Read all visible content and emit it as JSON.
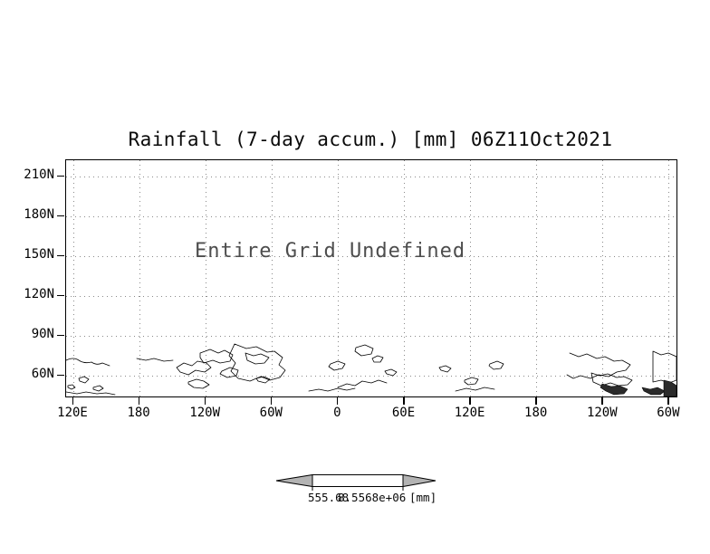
{
  "chart": {
    "title": "Rainfall (7-day accum.) [mm] 06Z11Oct2021",
    "annotation": "Entire Grid Undefined",
    "y_axis": {
      "labels": [
        "210N",
        "180N",
        "150N",
        "120N",
        "90N",
        "60N"
      ]
    },
    "x_axis": {
      "labels": [
        "120E",
        "180",
        "120W",
        "60W",
        "0",
        "60E",
        "120E",
        "180",
        "120W",
        "60W"
      ]
    },
    "colorbar": {
      "min_label": "555.68",
      "max_label": "8.5568e+06",
      "units_label": "[mm]",
      "arrow_color": "#b3b3b3",
      "cell_color": "#ffffff"
    }
  },
  "chart_data": {
    "type": "heatmap",
    "title": "Rainfall (7-day accum.) [mm] 06Z11Oct2021",
    "field": "Rainfall (7-day accum.)",
    "units": "mm",
    "valid_time": "06Z11Oct2021",
    "annotation": "Entire Grid Undefined",
    "values": null,
    "x_tick_labels": [
      "120E",
      "180",
      "120W",
      "60W",
      "0",
      "60E",
      "120E",
      "180",
      "120W",
      "60W"
    ],
    "y_tick_labels": [
      "210N",
      "180N",
      "150N",
      "120N",
      "90N",
      "60N"
    ],
    "grid": "dotted",
    "basemap": "coastlines (Arctic landmasses visible along bottom of panel)",
    "legend_position": "bottom-center",
    "colorbar": {
      "style": "double-arrow bar",
      "boundary_labels": [
        "555.68",
        "8.5568e+06"
      ],
      "units": "[mm]",
      "arrow_color": "#b3b3b3"
    }
  }
}
